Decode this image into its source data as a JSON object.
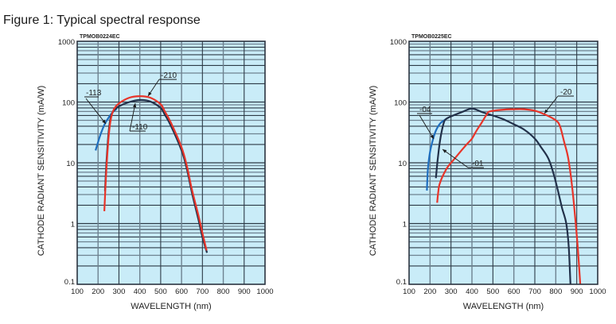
{
  "figure_title": "Figure 1: Typical spectral response",
  "chart_data": [
    {
      "type": "line",
      "id": "left",
      "code": "TPMOB0224EC",
      "xlabel": "WAVELENGTH (nm)",
      "ylabel": "CATHODE RADIANT SENSITIVITY (mA/W)",
      "xlim": [
        100,
        1000
      ],
      "ylim": [
        0.1,
        1000
      ],
      "yscale": "log",
      "grid": true,
      "xticks": [
        "100",
        "200",
        "300",
        "400",
        "500",
        "600",
        "700",
        "800",
        "900",
        "1000"
      ],
      "yticks": [
        "0.1",
        "1",
        "10",
        "100",
        "1000"
      ],
      "series": [
        {
          "name": "-113",
          "color": "#1f6fbf",
          "x": [
            188,
            210,
            230,
            250,
            270,
            290
          ],
          "y": [
            16,
            28,
            42,
            55,
            68,
            78
          ]
        },
        {
          "name": "-110",
          "color": "#22314a",
          "x": [
            233,
            240,
            250,
            260,
            275,
            300,
            350,
            400,
            450,
            500,
            520,
            550,
            600,
            625,
            650,
            680,
            700,
            722
          ],
          "y": [
            3.4,
            10,
            30,
            55,
            72,
            85,
            100,
            108,
            102,
            80,
            62,
            40,
            16,
            8,
            3.2,
            1.2,
            0.6,
            0.33
          ]
        },
        {
          "name": "-210",
          "color": "#e8352a",
          "x": [
            230,
            240,
            250,
            260,
            275,
            300,
            350,
            400,
            450,
            500,
            520,
            550,
            600,
            625,
            650,
            680,
            700,
            720
          ],
          "y": [
            1.6,
            8,
            25,
            50,
            75,
            95,
            118,
            125,
            118,
            92,
            70,
            45,
            18,
            9,
            3.6,
            1.4,
            0.7,
            0.36
          ]
        }
      ],
      "annotations": [
        "-113",
        "-110",
        "-210"
      ]
    },
    {
      "type": "line",
      "id": "right",
      "code": "TPMOB0225EC",
      "xlabel": "WAVELENGTH (nm)",
      "ylabel": "CATHODE RADIANT SENSITIVITY (mA/W)",
      "xlim": [
        100,
        1000
      ],
      "ylim": [
        0.1,
        1000
      ],
      "yscale": "log",
      "grid": true,
      "xticks": [
        "100",
        "200",
        "300",
        "400",
        "500",
        "600",
        "700",
        "800",
        "900",
        "1000"
      ],
      "yticks": [
        "0.1",
        "1",
        "10",
        "100",
        "1000"
      ],
      "series": [
        {
          "name": "-04",
          "color": "#1f6fbf",
          "x": [
            185,
            190,
            200,
            215,
            230,
            250,
            275
          ],
          "y": [
            3.5,
            8,
            15,
            25,
            35,
            45,
            52
          ]
        },
        {
          "name": "-01",
          "color": "#22314a",
          "x": [
            228,
            235,
            245,
            255,
            265,
            275,
            300,
            350,
            400,
            450,
            500,
            550,
            600,
            650,
            700,
            730,
            765,
            790,
            810,
            830,
            850,
            862,
            870
          ],
          "y": [
            5.6,
            10,
            20,
            32,
            45,
            52,
            58,
            68,
            78,
            68,
            60,
            52,
            43,
            35,
            25,
            18,
            11.7,
            6.5,
            3.5,
            1.8,
            1.0,
            0.4,
            0.1
          ]
        },
        {
          "name": "-20",
          "color": "#e8352a",
          "x": [
            234,
            240,
            245,
            260,
            285,
            320,
            350,
            380,
            400,
            420,
            445,
            470,
            485,
            550,
            600,
            650,
            700,
            750,
            800,
            820,
            840,
            860,
            880,
            895,
            905,
            917
          ],
          "y": [
            2.2,
            3.5,
            4.4,
            6,
            8.6,
            12,
            16,
            21,
            25,
            33,
            45,
            62,
            70,
            75,
            76,
            76,
            72,
            62,
            50,
            40,
            22,
            11.6,
            3.5,
            1.0,
            0.4,
            0.1
          ]
        }
      ],
      "annotations": [
        "-04",
        "-01",
        "-20"
      ]
    }
  ]
}
